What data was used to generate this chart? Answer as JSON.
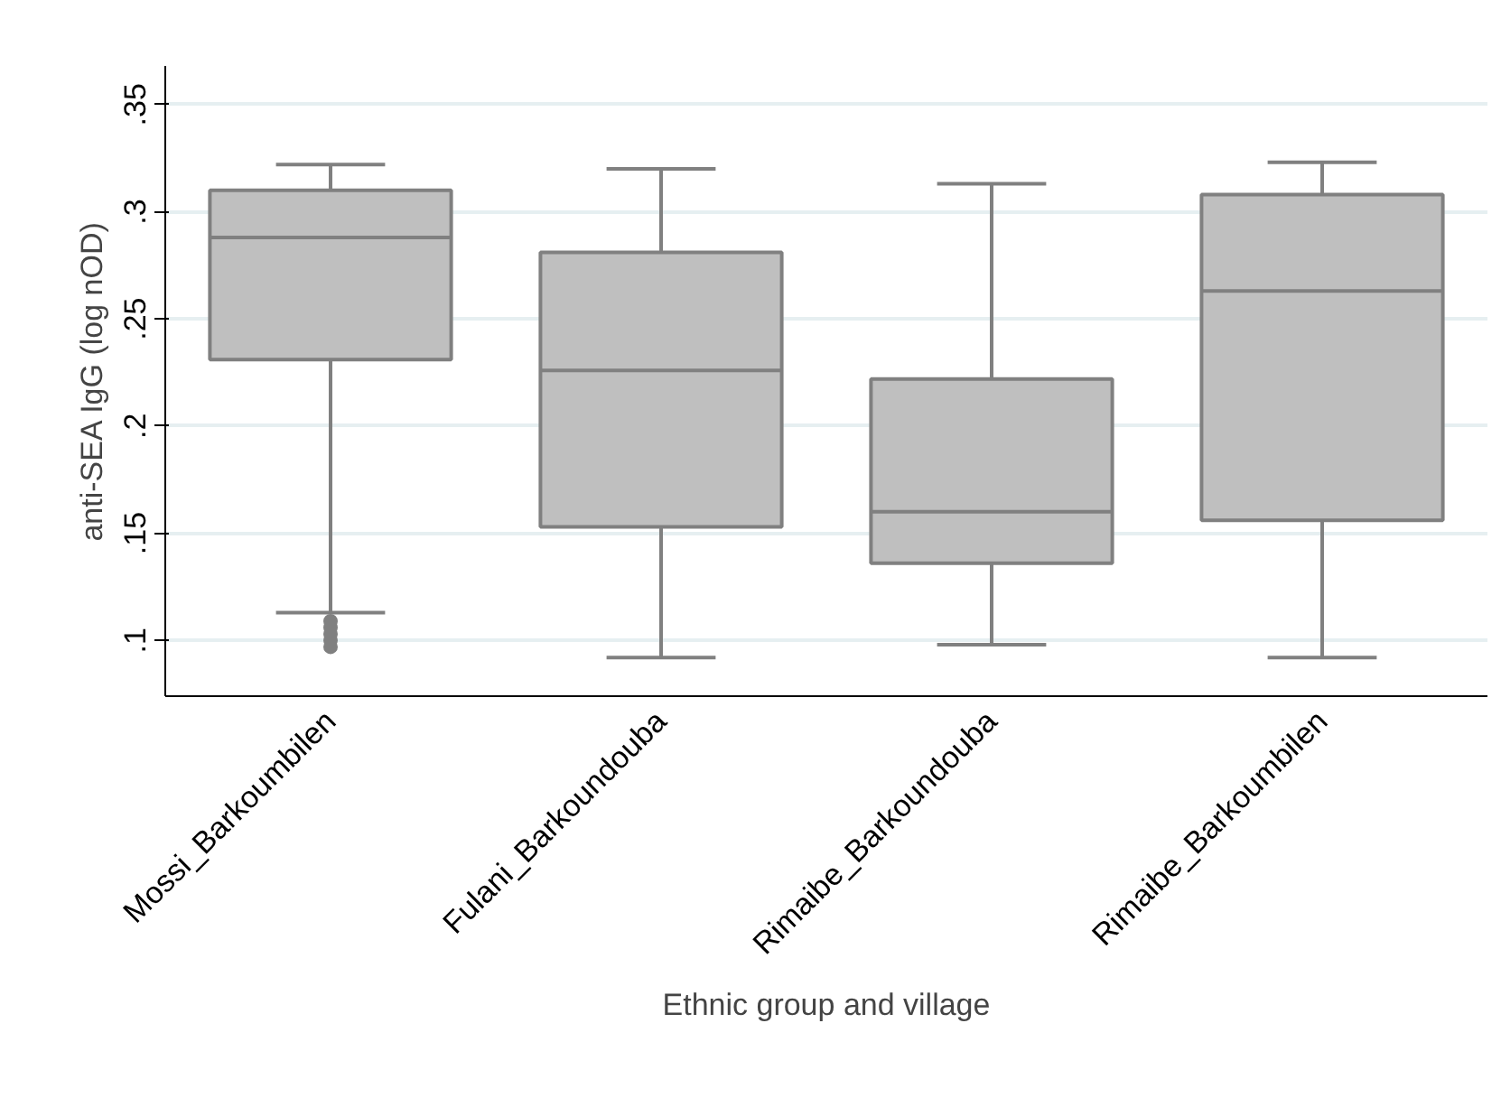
{
  "chart_data": {
    "type": "box",
    "xlabel": "Ethnic group and village",
    "ylabel": "anti-SEA IgG (log nOD)",
    "categories": [
      "Mossi_Barkoumbilen",
      "Fulani_Barkoundouba",
      "Rimaibe_Barkoundouba",
      "Rimaibe_Barkoumbilen"
    ],
    "series": [
      {
        "color": "#bfbfbf",
        "boxes": [
          {
            "low": 0.113,
            "q1": 0.231,
            "median": 0.288,
            "q3": 0.31,
            "high": 0.322,
            "outliers": [
              0.109,
              0.106,
              0.103,
              0.1,
              0.097
            ]
          },
          {
            "low": 0.092,
            "q1": 0.153,
            "median": 0.226,
            "q3": 0.281,
            "high": 0.32
          },
          {
            "low": 0.098,
            "q1": 0.136,
            "median": 0.16,
            "q3": 0.222,
            "high": 0.313
          },
          {
            "low": 0.092,
            "q1": 0.156,
            "median": 0.263,
            "q3": 0.308,
            "high": 0.323
          }
        ]
      }
    ],
    "ylim": [
      0.074,
      0.368
    ],
    "yticks": [
      {
        "value": 0.1,
        "label": ".1"
      },
      {
        "value": 0.15,
        "label": ".15"
      },
      {
        "value": 0.2,
        "label": ".2"
      },
      {
        "value": 0.25,
        "label": ".25"
      },
      {
        "value": 0.3,
        "label": ".3"
      },
      {
        "value": 0.35,
        "label": ".35"
      }
    ],
    "grid": "y"
  }
}
